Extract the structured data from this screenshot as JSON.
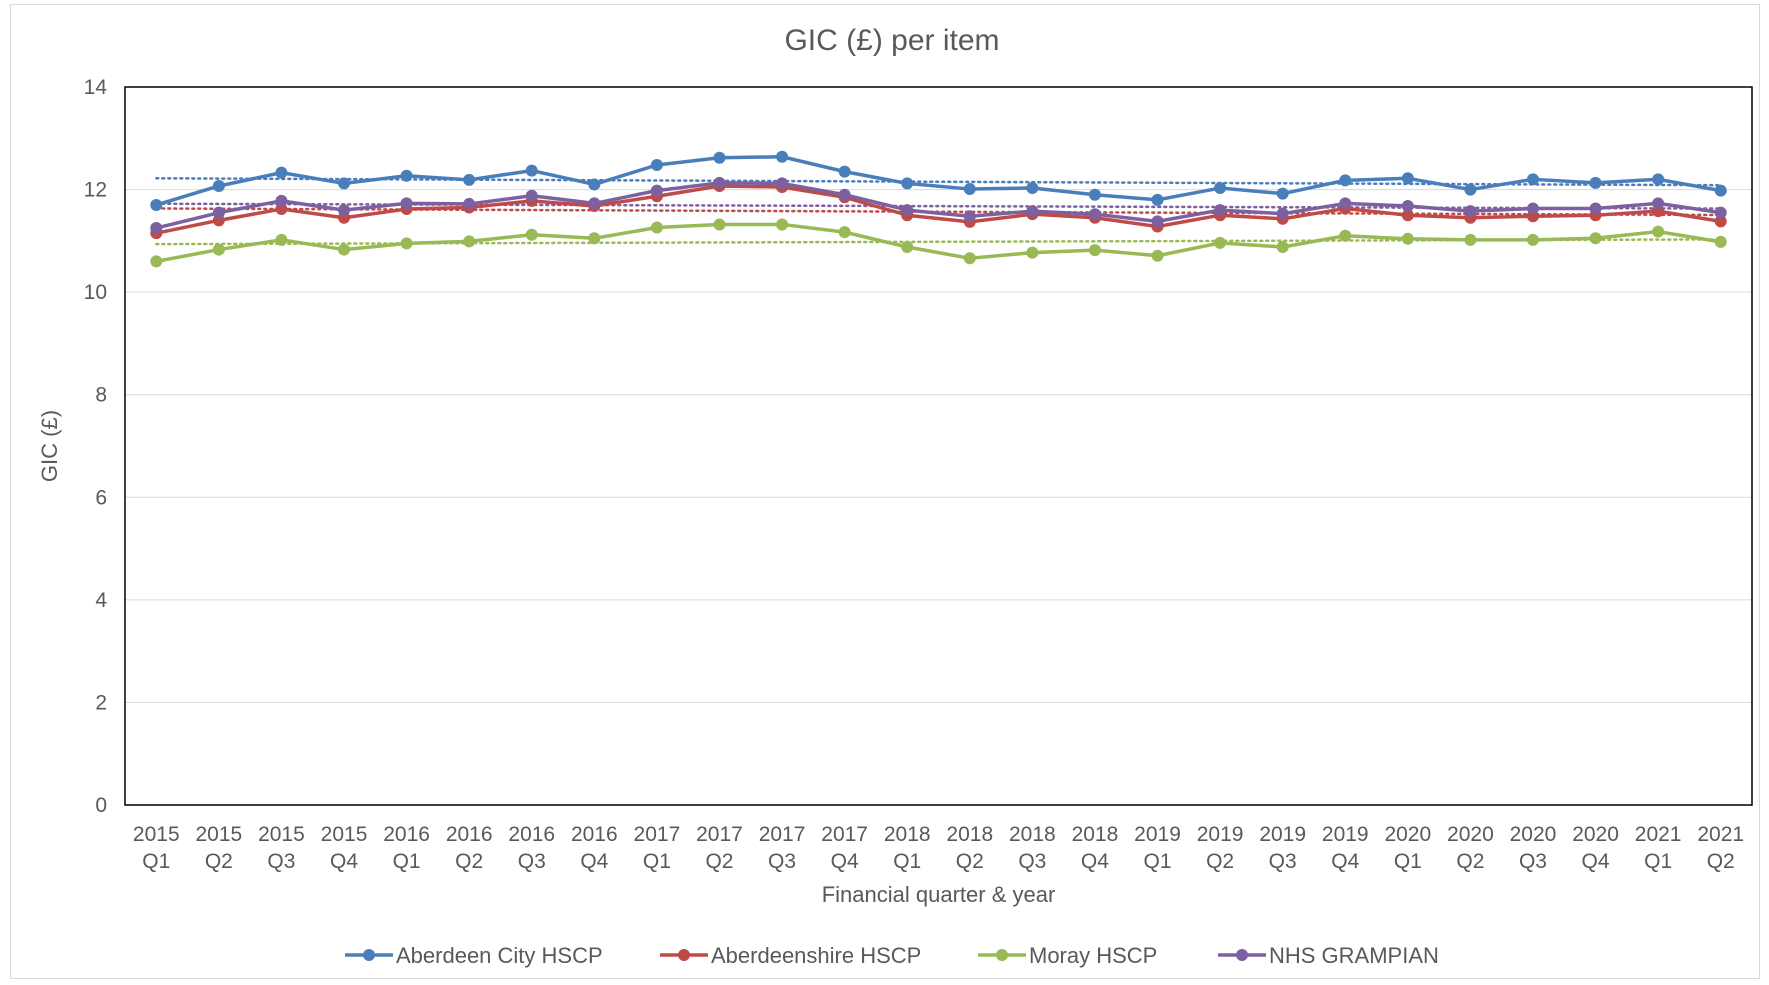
{
  "chart_data": {
    "type": "line",
    "title": "GIC (£) per item",
    "xlabel": "Financial quarter & year",
    "ylabel": "GIC (£)",
    "ylim": [
      0,
      14
    ],
    "yticks": [
      "0",
      "2",
      "4",
      "6",
      "8",
      "10",
      "12",
      "14"
    ],
    "grid": true,
    "legend_position": "bottom",
    "trendlines": "dotted linear trendline per series",
    "categories": [
      {
        "year": "2015",
        "quarter": "Q1"
      },
      {
        "year": "2015",
        "quarter": "Q2"
      },
      {
        "year": "2015",
        "quarter": "Q3"
      },
      {
        "year": "2015",
        "quarter": "Q4"
      },
      {
        "year": "2016",
        "quarter": "Q1"
      },
      {
        "year": "2016",
        "quarter": "Q2"
      },
      {
        "year": "2016",
        "quarter": "Q3"
      },
      {
        "year": "2016",
        "quarter": "Q4"
      },
      {
        "year": "2017",
        "quarter": "Q1"
      },
      {
        "year": "2017",
        "quarter": "Q2"
      },
      {
        "year": "2017",
        "quarter": "Q3"
      },
      {
        "year": "2017",
        "quarter": "Q4"
      },
      {
        "year": "2018",
        "quarter": "Q1"
      },
      {
        "year": "2018",
        "quarter": "Q2"
      },
      {
        "year": "2018",
        "quarter": "Q3"
      },
      {
        "year": "2018",
        "quarter": "Q4"
      },
      {
        "year": "2019",
        "quarter": "Q1"
      },
      {
        "year": "2019",
        "quarter": "Q2"
      },
      {
        "year": "2019",
        "quarter": "Q3"
      },
      {
        "year": "2019",
        "quarter": "Q4"
      },
      {
        "year": "2020",
        "quarter": "Q1"
      },
      {
        "year": "2020",
        "quarter": "Q2"
      },
      {
        "year": "2020",
        "quarter": "Q3"
      },
      {
        "year": "2020",
        "quarter": "Q4"
      },
      {
        "year": "2021",
        "quarter": "Q1"
      },
      {
        "year": "2021",
        "quarter": "Q2"
      }
    ],
    "series": [
      {
        "name": "Aberdeen City HSCP",
        "color": "#4a7ebb",
        "values": [
          11.7,
          12.07,
          12.33,
          12.12,
          12.27,
          12.19,
          12.37,
          12.1,
          12.48,
          12.62,
          12.64,
          12.35,
          12.12,
          12.01,
          12.03,
          11.9,
          11.8,
          12.03,
          11.92,
          12.18,
          12.22,
          12.0,
          12.2,
          12.13,
          12.2,
          11.98
        ]
      },
      {
        "name": "Aberdeenshire HSCP",
        "color": "#be4b48",
        "values": [
          11.15,
          11.4,
          11.62,
          11.45,
          11.62,
          11.65,
          11.78,
          11.68,
          11.87,
          12.07,
          12.05,
          11.85,
          11.5,
          11.37,
          11.52,
          11.45,
          11.28,
          11.5,
          11.43,
          11.63,
          11.5,
          11.45,
          11.48,
          11.5,
          11.58,
          11.38
        ]
      },
      {
        "name": "Moray HSCP",
        "color": "#98b954",
        "values": [
          10.6,
          10.83,
          11.02,
          10.83,
          10.95,
          10.99,
          11.12,
          11.05,
          11.26,
          11.32,
          11.32,
          11.17,
          10.88,
          10.66,
          10.77,
          10.82,
          10.71,
          10.96,
          10.88,
          11.1,
          11.04,
          11.02,
          11.02,
          11.05,
          11.18,
          10.98
        ]
      },
      {
        "name": "NHS GRAMPIAN",
        "color": "#7d60a0",
        "values": [
          11.25,
          11.55,
          11.78,
          11.6,
          11.73,
          11.72,
          11.88,
          11.73,
          11.98,
          12.13,
          12.12,
          11.9,
          11.6,
          11.48,
          11.58,
          11.52,
          11.38,
          11.6,
          11.53,
          11.73,
          11.68,
          11.58,
          11.63,
          11.63,
          11.73,
          11.55
        ]
      }
    ]
  }
}
